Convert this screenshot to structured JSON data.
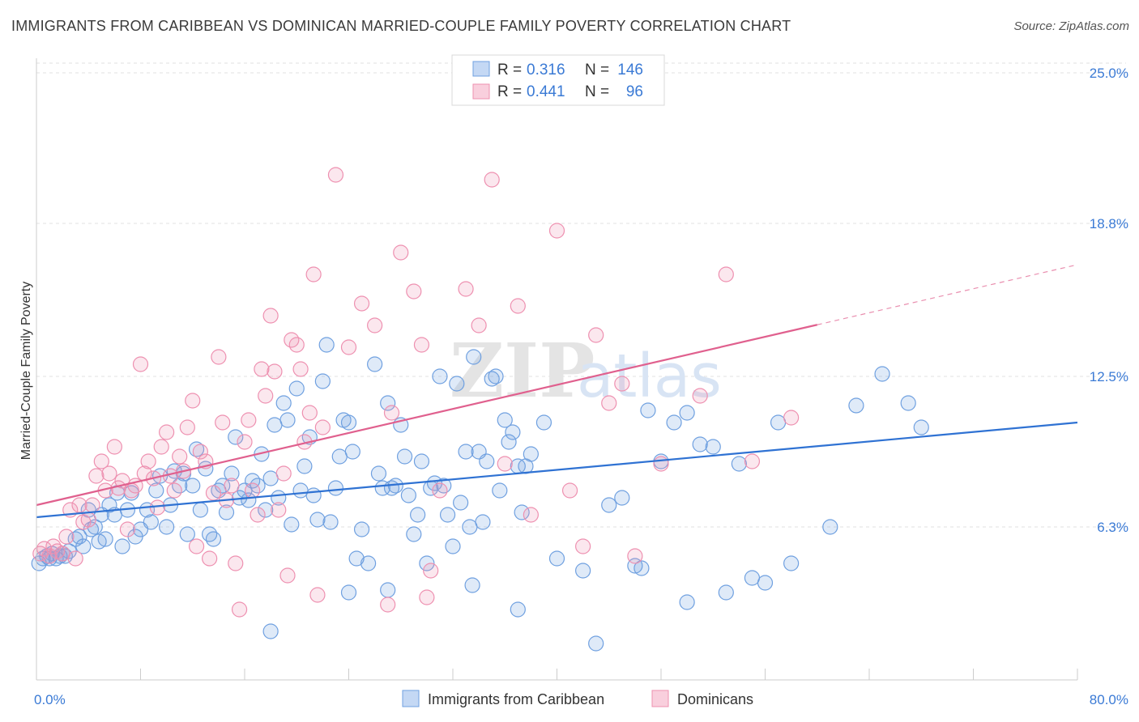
{
  "header": {
    "title": "IMMIGRANTS FROM CARIBBEAN VS DOMINICAN MARRIED-COUPLE FAMILY POVERTY CORRELATION CHART",
    "source": "Source: ZipAtlas.com"
  },
  "watermark": {
    "part1": "ZIP",
    "part2": "atlas"
  },
  "legend": {
    "r_label": "R =",
    "n_label": "N =",
    "entries": [
      {
        "r": "0.316",
        "n": "146",
        "color": "#6fa0e0"
      },
      {
        "r": "0.441",
        "n": "96",
        "color": "#ee90b0"
      }
    ]
  },
  "bottom_legend": {
    "items": [
      {
        "label": "Immigrants from Caribbean",
        "color": "#6fa0e0"
      },
      {
        "label": "Dominicans",
        "color": "#ee90b0"
      }
    ]
  },
  "chart_data": {
    "type": "scatter",
    "title": "IMMIGRANTS FROM CARIBBEAN VS DOMINICAN MARRIED-COUPLE FAMILY POVERTY CORRELATION CHART",
    "ylabel": "Married-Couple Family Poverty",
    "xlabel": "",
    "xlim": [
      0,
      80
    ],
    "ylim": [
      0,
      25.6
    ],
    "x_tick_labels": [
      {
        "value": 0,
        "label": "0.0%"
      },
      {
        "value": 80,
        "label": "80.0%"
      }
    ],
    "y_tick_labels": [
      {
        "value": 6.3,
        "label": "6.3%"
      },
      {
        "value": 12.5,
        "label": "12.5%"
      },
      {
        "value": 18.8,
        "label": "18.8%"
      },
      {
        "value": 25.0,
        "label": "25.0%"
      }
    ],
    "grid": true,
    "legend_position": "top-center",
    "series": [
      {
        "name": "Immigrants from Caribbean",
        "color": "#6fa0e0",
        "line_color": "#2f72d3",
        "trend": {
          "x": [
            0,
            80
          ],
          "y": [
            6.7,
            10.6
          ],
          "dashed_from": null
        },
        "points": [
          [
            0.2,
            4.8
          ],
          [
            0.5,
            5.0
          ],
          [
            0.8,
            5.1
          ],
          [
            1.0,
            5.0
          ],
          [
            1.2,
            5.2
          ],
          [
            1.5,
            5.0
          ],
          [
            1.8,
            5.1
          ],
          [
            2.0,
            5.2
          ],
          [
            2.2,
            5.1
          ],
          [
            2.5,
            5.3
          ],
          [
            3.0,
            5.8
          ],
          [
            3.3,
            5.9
          ],
          [
            3.6,
            5.5
          ],
          [
            4.0,
            7.0
          ],
          [
            4.2,
            6.2
          ],
          [
            4.5,
            6.3
          ],
          [
            4.8,
            5.7
          ],
          [
            5.0,
            6.8
          ],
          [
            5.3,
            5.8
          ],
          [
            5.6,
            7.2
          ],
          [
            6.0,
            6.8
          ],
          [
            6.2,
            7.7
          ],
          [
            6.6,
            5.5
          ],
          [
            7.0,
            7.0
          ],
          [
            7.3,
            7.7
          ],
          [
            7.6,
            5.9
          ],
          [
            8.0,
            6.2
          ],
          [
            8.5,
            7.0
          ],
          [
            8.8,
            6.5
          ],
          [
            9.2,
            7.8
          ],
          [
            9.5,
            8.4
          ],
          [
            10.0,
            6.3
          ],
          [
            10.3,
            7.2
          ],
          [
            10.6,
            8.6
          ],
          [
            11.0,
            8.0
          ],
          [
            11.3,
            8.5
          ],
          [
            11.6,
            6.0
          ],
          [
            12.0,
            8.0
          ],
          [
            12.3,
            9.5
          ],
          [
            12.6,
            7.0
          ],
          [
            13.0,
            8.7
          ],
          [
            13.3,
            6.0
          ],
          [
            13.6,
            5.8
          ],
          [
            14.0,
            7.8
          ],
          [
            14.3,
            8.0
          ],
          [
            14.6,
            6.9
          ],
          [
            15.0,
            8.5
          ],
          [
            15.3,
            10.0
          ],
          [
            15.6,
            7.5
          ],
          [
            16.0,
            7.8
          ],
          [
            16.3,
            7.4
          ],
          [
            16.6,
            8.2
          ],
          [
            17.0,
            8.0
          ],
          [
            17.3,
            9.3
          ],
          [
            17.6,
            7.0
          ],
          [
            18.0,
            8.3
          ],
          [
            18.3,
            10.5
          ],
          [
            18.6,
            7.5
          ],
          [
            19.0,
            11.4
          ],
          [
            19.3,
            10.7
          ],
          [
            19.6,
            6.4
          ],
          [
            20.0,
            12.0
          ],
          [
            20.3,
            7.8
          ],
          [
            20.6,
            8.8
          ],
          [
            21.0,
            10.0
          ],
          [
            21.3,
            7.6
          ],
          [
            21.6,
            6.6
          ],
          [
            22.0,
            12.3
          ],
          [
            22.3,
            13.8
          ],
          [
            22.6,
            6.5
          ],
          [
            23.0,
            7.9
          ],
          [
            23.3,
            9.2
          ],
          [
            23.6,
            10.7
          ],
          [
            24.0,
            10.6
          ],
          [
            24.3,
            9.4
          ],
          [
            24.6,
            5.0
          ],
          [
            25.0,
            6.2
          ],
          [
            25.5,
            4.8
          ],
          [
            26.0,
            13.0
          ],
          [
            26.3,
            8.5
          ],
          [
            26.6,
            7.9
          ],
          [
            27.0,
            11.4
          ],
          [
            27.3,
            7.9
          ],
          [
            27.6,
            8.0
          ],
          [
            28.0,
            10.5
          ],
          [
            28.3,
            9.2
          ],
          [
            28.6,
            7.6
          ],
          [
            29.0,
            6.0
          ],
          [
            29.3,
            6.8
          ],
          [
            29.6,
            9.0
          ],
          [
            30.0,
            4.8
          ],
          [
            30.3,
            7.9
          ],
          [
            30.6,
            8.1
          ],
          [
            31.0,
            12.5
          ],
          [
            31.3,
            8.0
          ],
          [
            31.6,
            6.8
          ],
          [
            32.0,
            5.5
          ],
          [
            32.3,
            12.2
          ],
          [
            32.6,
            7.3
          ],
          [
            33.0,
            9.4
          ],
          [
            33.3,
            6.3
          ],
          [
            33.6,
            13.3
          ],
          [
            34.0,
            9.4
          ],
          [
            34.3,
            6.5
          ],
          [
            34.6,
            9.0
          ],
          [
            35.0,
            12.4
          ],
          [
            35.3,
            12.5
          ],
          [
            35.6,
            7.8
          ],
          [
            36.0,
            10.7
          ],
          [
            36.3,
            9.8
          ],
          [
            36.6,
            10.2
          ],
          [
            37.0,
            8.8
          ],
          [
            37.3,
            6.9
          ],
          [
            37.6,
            8.8
          ],
          [
            38.0,
            9.3
          ],
          [
            39.0,
            10.6
          ],
          [
            40.0,
            5.0
          ],
          [
            42.0,
            4.5
          ],
          [
            44.0,
            7.2
          ],
          [
            45.0,
            7.5
          ],
          [
            46.0,
            4.7
          ],
          [
            46.5,
            4.6
          ],
          [
            47.0,
            11.1
          ],
          [
            48.0,
            9.0
          ],
          [
            49.0,
            10.6
          ],
          [
            50.0,
            11.0
          ],
          [
            51.0,
            9.7
          ],
          [
            52.0,
            9.6
          ],
          [
            54.0,
            8.9
          ],
          [
            55.0,
            4.2
          ],
          [
            56.0,
            4.0
          ],
          [
            57.0,
            10.6
          ],
          [
            58.0,
            4.8
          ],
          [
            61.0,
            6.3
          ],
          [
            63.0,
            11.3
          ],
          [
            65.0,
            12.6
          ],
          [
            67.0,
            11.4
          ],
          [
            68.0,
            10.4
          ],
          [
            18.0,
            2.0
          ],
          [
            37.0,
            2.9
          ],
          [
            43.0,
            1.5
          ],
          [
            33.5,
            3.9
          ],
          [
            24.0,
            3.6
          ],
          [
            27.0,
            3.7
          ],
          [
            53.0,
            3.6
          ],
          [
            50.0,
            3.2
          ]
        ]
      },
      {
        "name": "Dominicans",
        "color": "#ee90b0",
        "line_color": "#e0608e",
        "trend": {
          "x": [
            0,
            80
          ],
          "y": [
            7.2,
            17.1
          ],
          "dashed_from": 60
        },
        "points": [
          [
            0.3,
            5.2
          ],
          [
            0.6,
            5.4
          ],
          [
            1.0,
            5.1
          ],
          [
            1.3,
            5.5
          ],
          [
            1.6,
            5.3
          ],
          [
            2.0,
            5.2
          ],
          [
            2.3,
            5.9
          ],
          [
            2.6,
            7.0
          ],
          [
            3.0,
            5.0
          ],
          [
            3.3,
            7.2
          ],
          [
            3.6,
            6.5
          ],
          [
            4.0,
            6.6
          ],
          [
            4.3,
            7.2
          ],
          [
            4.6,
            8.4
          ],
          [
            5.0,
            9.0
          ],
          [
            5.3,
            7.8
          ],
          [
            5.6,
            8.5
          ],
          [
            6.0,
            9.6
          ],
          [
            6.3,
            7.9
          ],
          [
            6.6,
            8.2
          ],
          [
            7.0,
            6.2
          ],
          [
            7.3,
            7.8
          ],
          [
            7.6,
            8.0
          ],
          [
            8.0,
            13.0
          ],
          [
            8.3,
            8.5
          ],
          [
            8.6,
            9.0
          ],
          [
            9.0,
            8.3
          ],
          [
            9.3,
            7.1
          ],
          [
            9.6,
            9.6
          ],
          [
            10.0,
            10.2
          ],
          [
            10.3,
            8.4
          ],
          [
            10.6,
            7.8
          ],
          [
            11.0,
            9.2
          ],
          [
            11.3,
            8.6
          ],
          [
            11.6,
            10.4
          ],
          [
            12.0,
            11.5
          ],
          [
            12.3,
            5.5
          ],
          [
            12.6,
            9.4
          ],
          [
            13.0,
            9.0
          ],
          [
            13.3,
            5.0
          ],
          [
            13.6,
            7.7
          ],
          [
            14.0,
            13.3
          ],
          [
            14.3,
            10.6
          ],
          [
            14.6,
            7.4
          ],
          [
            15.0,
            8.0
          ],
          [
            15.3,
            4.8
          ],
          [
            15.6,
            2.9
          ],
          [
            16.0,
            9.8
          ],
          [
            16.3,
            10.7
          ],
          [
            16.6,
            7.8
          ],
          [
            17.0,
            6.8
          ],
          [
            17.3,
            12.8
          ],
          [
            17.6,
            11.7
          ],
          [
            18.0,
            15.0
          ],
          [
            18.3,
            12.7
          ],
          [
            18.6,
            7.0
          ],
          [
            19.0,
            8.5
          ],
          [
            19.3,
            4.3
          ],
          [
            19.6,
            14.0
          ],
          [
            20.0,
            13.8
          ],
          [
            20.3,
            12.8
          ],
          [
            20.6,
            9.8
          ],
          [
            21.0,
            11.0
          ],
          [
            21.3,
            16.7
          ],
          [
            21.6,
            3.5
          ],
          [
            22.0,
            10.4
          ],
          [
            23.0,
            20.8
          ],
          [
            24.0,
            13.7
          ],
          [
            25.0,
            15.5
          ],
          [
            26.0,
            14.6
          ],
          [
            27.0,
            3.1
          ],
          [
            27.3,
            11.0
          ],
          [
            28.0,
            17.6
          ],
          [
            29.0,
            16.0
          ],
          [
            29.6,
            13.8
          ],
          [
            30.0,
            3.4
          ],
          [
            30.3,
            4.5
          ],
          [
            31.0,
            7.8
          ],
          [
            33.0,
            16.1
          ],
          [
            34.0,
            14.6
          ],
          [
            35.0,
            20.6
          ],
          [
            36.0,
            8.9
          ],
          [
            37.0,
            15.4
          ],
          [
            38.0,
            6.8
          ],
          [
            40.0,
            18.5
          ],
          [
            41.0,
            7.8
          ],
          [
            42.0,
            5.5
          ],
          [
            43.0,
            14.2
          ],
          [
            44.0,
            11.4
          ],
          [
            45.0,
            12.2
          ],
          [
            46.0,
            5.1
          ],
          [
            48.0,
            8.9
          ],
          [
            51.0,
            11.7
          ],
          [
            53.0,
            16.7
          ],
          [
            55.0,
            9.0
          ],
          [
            58.0,
            10.8
          ]
        ]
      }
    ]
  }
}
